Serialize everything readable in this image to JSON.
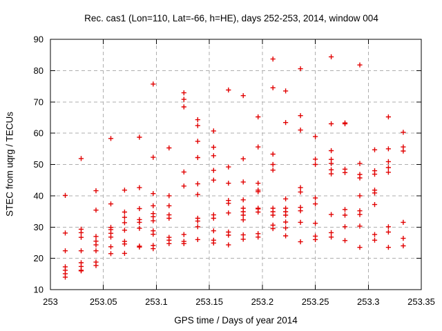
{
  "title": "Rec. cas1 (Lon=110, Lat=-66, h=HE), days 252-253, 2014, window 004",
  "colors": {
    "background": "#ffffff",
    "marker": "#e10000",
    "grid": "#adadad",
    "axis": "#000000",
    "text": "#000000"
  },
  "chart_data": {
    "type": "scatter",
    "title": "Rec. cas1 (Lon=110, Lat=-66, h=HE), days 252-253, 2014, window 004",
    "xlabel": "GPS time / Days of year 2014",
    "ylabel": "STEC from uqrg / TECUs",
    "xlim": [
      253.0,
      253.35
    ],
    "ylim": [
      10,
      90
    ],
    "xtick_values": [
      253.0,
      253.05,
      253.1,
      253.15,
      253.2,
      253.25,
      253.3,
      253.35
    ],
    "xtick_labels": [
      "253",
      "253.05",
      "253.1",
      "253.15",
      "253.2",
      "253.25",
      "253.3",
      "253.35"
    ],
    "ytick_values": [
      10,
      20,
      30,
      40,
      50,
      60,
      70,
      80,
      90
    ],
    "ytick_labels": [
      "10",
      "20",
      "30",
      "40",
      "50",
      "60",
      "70",
      "80",
      "90"
    ],
    "grid": true,
    "grid_style": "dashed",
    "legend": "none",
    "marker": "plus",
    "series_name": "STEC",
    "epochs": [
      {
        "x": 253.014,
        "y": [
          40.1,
          28.1,
          22.4,
          17.3,
          16.2,
          15.1,
          14.0
        ]
      },
      {
        "x": 253.029,
        "y": [
          51.9,
          29.3,
          28.2,
          26.7,
          22.4,
          18.6,
          17.4,
          16.2,
          16.0
        ]
      },
      {
        "x": 253.043,
        "y": [
          41.6,
          35.4,
          27.0,
          25.5,
          24.3,
          22.4,
          18.8,
          17.7
        ]
      },
      {
        "x": 253.057,
        "y": [
          58.3,
          37.4,
          29.9,
          29.2,
          28.0,
          26.8,
          23.7,
          21.5
        ]
      },
      {
        "x": 253.07,
        "y": [
          41.8,
          34.8,
          33.1,
          31.4,
          29.0,
          25.4,
          24.6,
          21.6
        ]
      },
      {
        "x": 253.084,
        "y": [
          58.7,
          42.6,
          35.9,
          32.4,
          31.5,
          29.6,
          23.9,
          23.6
        ]
      },
      {
        "x": 253.097,
        "y": [
          75.7,
          52.3,
          40.7,
          36.8,
          34.3,
          33.3,
          32.0,
          28.8,
          27.7,
          24.1,
          23.1
        ]
      },
      {
        "x": 253.112,
        "y": [
          55.3,
          40.0,
          36.8,
          33.9,
          32.8,
          26.7,
          25.8,
          24.7
        ]
      },
      {
        "x": 253.126,
        "y": [
          72.9,
          70.8,
          68.4,
          47.6,
          43.1,
          27.6,
          25.4,
          24.7
        ]
      },
      {
        "x": 253.139,
        "y": [
          64.3,
          62.4,
          57.4,
          52.2,
          43.8,
          40.4,
          32.8,
          31.9,
          30.1,
          26.0
        ]
      },
      {
        "x": 253.154,
        "y": [
          60.7,
          55.5,
          52.8,
          48.1,
          45.0,
          33.9,
          32.8,
          28.8,
          25.8,
          24.9
        ]
      },
      {
        "x": 253.168,
        "y": [
          73.8,
          49.2,
          44.0,
          38.5,
          37.6,
          34.5,
          28.4,
          27.4,
          24.3
        ]
      },
      {
        "x": 253.182,
        "y": [
          72.0,
          51.8,
          44.4,
          38.7,
          36.0,
          34.9,
          33.8,
          32.3,
          27.5,
          26.1
        ]
      },
      {
        "x": 253.196,
        "y": [
          65.2,
          55.6,
          44.0,
          41.8,
          41.3,
          36.0,
          35.8,
          34.8,
          27.9,
          26.8
        ]
      },
      {
        "x": 253.21,
        "y": [
          83.7,
          74.5,
          53.3,
          50.0,
          48.2,
          36.0,
          34.9,
          33.8,
          30.6,
          29.5
        ]
      },
      {
        "x": 253.222,
        "y": [
          73.5,
          63.4,
          39.0,
          36.0,
          34.9,
          33.8,
          31.6,
          29.7,
          27.2
        ]
      },
      {
        "x": 253.236,
        "y": [
          80.6,
          65.6,
          61.0,
          42.6,
          41.2,
          36.3,
          35.2,
          31.5,
          25.3
        ]
      },
      {
        "x": 253.25,
        "y": [
          58.9,
          51.7,
          50.0,
          39.3,
          37.4,
          31.2,
          27.1,
          26.0
        ]
      },
      {
        "x": 253.265,
        "y": [
          84.4,
          63.0,
          54.4,
          51.6,
          50.3,
          48.3,
          47.0,
          34.0,
          28.2,
          26.8
        ]
      },
      {
        "x": 253.278,
        "y": [
          63.3,
          63.0,
          48.5,
          47.4,
          35.6,
          33.8,
          30.1,
          25.7
        ]
      },
      {
        "x": 253.292,
        "y": [
          81.8,
          50.3,
          46.8,
          45.7,
          40.0,
          35.2,
          34.0,
          30.3,
          23.5
        ]
      },
      {
        "x": 253.306,
        "y": [
          54.7,
          48.0,
          46.9,
          41.8,
          40.9,
          37.2,
          27.6,
          25.8
        ]
      },
      {
        "x": 253.319,
        "y": [
          65.2,
          55.0,
          50.9,
          49.0,
          47.5,
          30.1,
          28.4,
          23.5
        ]
      },
      {
        "x": 253.333,
        "y": [
          60.3,
          55.6,
          54.3,
          31.5,
          26.4,
          24.0
        ]
      }
    ]
  }
}
